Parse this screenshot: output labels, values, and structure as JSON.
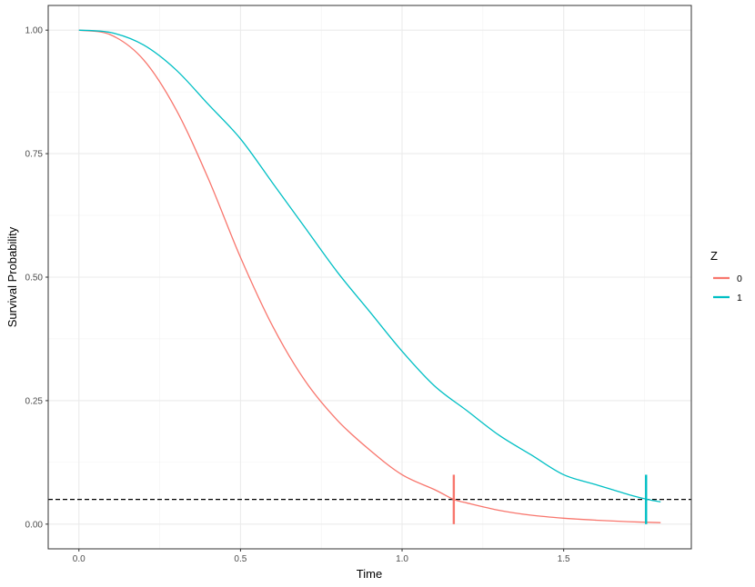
{
  "chart_data": {
    "type": "line",
    "xlabel": "Time",
    "ylabel": "Survival Probability",
    "xlim": [
      -0.095,
      1.895
    ],
    "ylim": [
      -0.05,
      1.05
    ],
    "xticks": [
      0.0,
      0.5,
      1.0,
      1.5
    ],
    "xtick_labels": [
      "0.0",
      "0.5",
      "1.0",
      "1.5"
    ],
    "yticks": [
      0.0,
      0.25,
      0.5,
      0.75,
      1.0
    ],
    "ytick_labels": [
      "0.00",
      "0.25",
      "0.50",
      "0.75",
      "1.00"
    ],
    "grid": true,
    "legend": {
      "title": "Z",
      "position": "right"
    },
    "reference_line": {
      "y": 0.05,
      "style": "dashed",
      "color": "#000000"
    },
    "series": [
      {
        "name": "0",
        "color": "#F8766D",
        "x": [
          0.0,
          0.1,
          0.2,
          0.3,
          0.4,
          0.5,
          0.6,
          0.7,
          0.8,
          0.9,
          1.0,
          1.1,
          1.16,
          1.2,
          1.3,
          1.4,
          1.5,
          1.6,
          1.7,
          1.8
        ],
        "y": [
          1.0,
          0.99,
          0.94,
          0.84,
          0.7,
          0.54,
          0.4,
          0.29,
          0.21,
          0.15,
          0.1,
          0.07,
          0.05,
          0.043,
          0.028,
          0.018,
          0.012,
          0.008,
          0.005,
          0.003
        ],
        "marker": {
          "x": 1.16,
          "y_from": 0.0,
          "y_to": 0.1
        }
      },
      {
        "name": "1",
        "color": "#00BFC4",
        "x": [
          0.0,
          0.1,
          0.2,
          0.3,
          0.4,
          0.5,
          0.6,
          0.7,
          0.8,
          0.9,
          1.0,
          1.1,
          1.2,
          1.3,
          1.4,
          1.5,
          1.6,
          1.7,
          1.76,
          1.8
        ],
        "y": [
          1.0,
          0.995,
          0.97,
          0.92,
          0.85,
          0.78,
          0.69,
          0.6,
          0.51,
          0.43,
          0.35,
          0.28,
          0.23,
          0.18,
          0.14,
          0.1,
          0.08,
          0.06,
          0.05,
          0.045
        ],
        "marker": {
          "x": 1.755,
          "y_from": 0.0,
          "y_to": 0.1
        }
      }
    ]
  }
}
